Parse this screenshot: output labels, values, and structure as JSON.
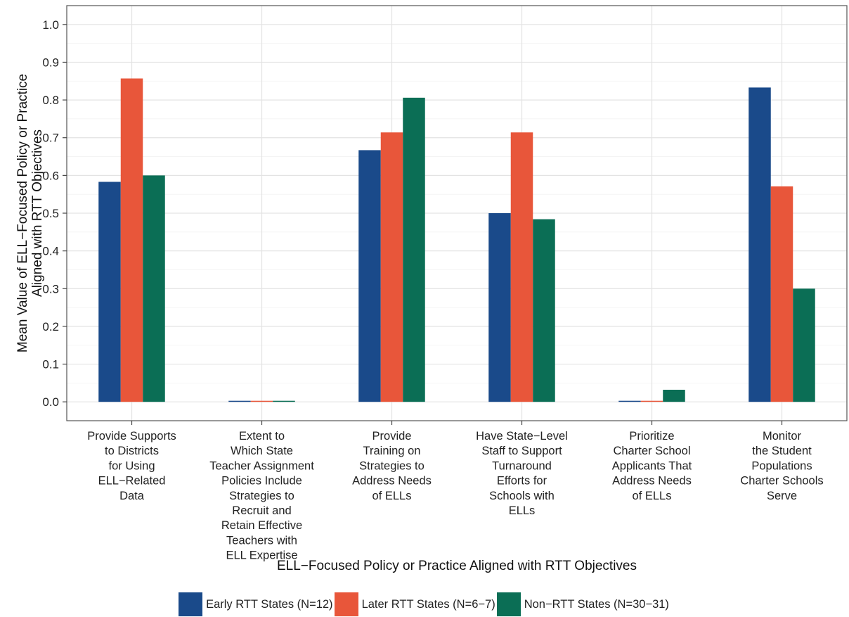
{
  "chart_data": {
    "type": "bar",
    "xlabel": "ELL−Focused Policy or Practice Aligned with RTT Objectives",
    "ylabel": [
      "Mean Value of ELL−Focused Policy or Practice",
      "Aligned with RTT Objectives"
    ],
    "ylim": [
      0,
      1.0
    ],
    "yticks": [
      "0.0",
      "0.1",
      "0.2",
      "0.3",
      "0.4",
      "0.5",
      "0.6",
      "0.7",
      "0.8",
      "0.9",
      "1.0"
    ],
    "grid": true,
    "legend_position": "bottom",
    "categories": [
      [
        "Provide Supports",
        "to Districts",
        "for Using",
        "ELL−Related",
        "Data"
      ],
      [
        "Extent to",
        "Which State",
        "Teacher Assignment",
        "Policies Include",
        "Strategies to",
        "Recruit and",
        "Retain Effective",
        "Teachers with",
        "ELL Expertise"
      ],
      [
        "Provide",
        "Training on",
        "Strategies to",
        "Address Needs",
        "of ELLs"
      ],
      [
        "Have State−Level",
        "Staff to Support",
        "Turnaround",
        "Efforts for",
        "Schools with",
        "ELLs"
      ],
      [
        "Prioritize",
        "Charter School",
        "Applicants That",
        "Address Needs",
        "of ELLs"
      ],
      [
        "Monitor",
        "the Student",
        "Populations",
        "Charter Schools",
        "Serve"
      ]
    ],
    "series": [
      {
        "name": "Early RTT States (N=12)",
        "color": "#1a4a8a",
        "values": [
          0.583,
          0.0,
          0.667,
          0.5,
          0.0,
          0.833
        ]
      },
      {
        "name": "Later RTT States (N=6−7)",
        "color": "#e8563a",
        "values": [
          0.857,
          0.0,
          0.714,
          0.714,
          0.0,
          0.571
        ]
      },
      {
        "name": "Non−RTT States (N=30−31)",
        "color": "#0b6e55",
        "values": [
          0.6,
          0.0,
          0.806,
          0.484,
          0.032,
          0.3
        ]
      }
    ]
  }
}
